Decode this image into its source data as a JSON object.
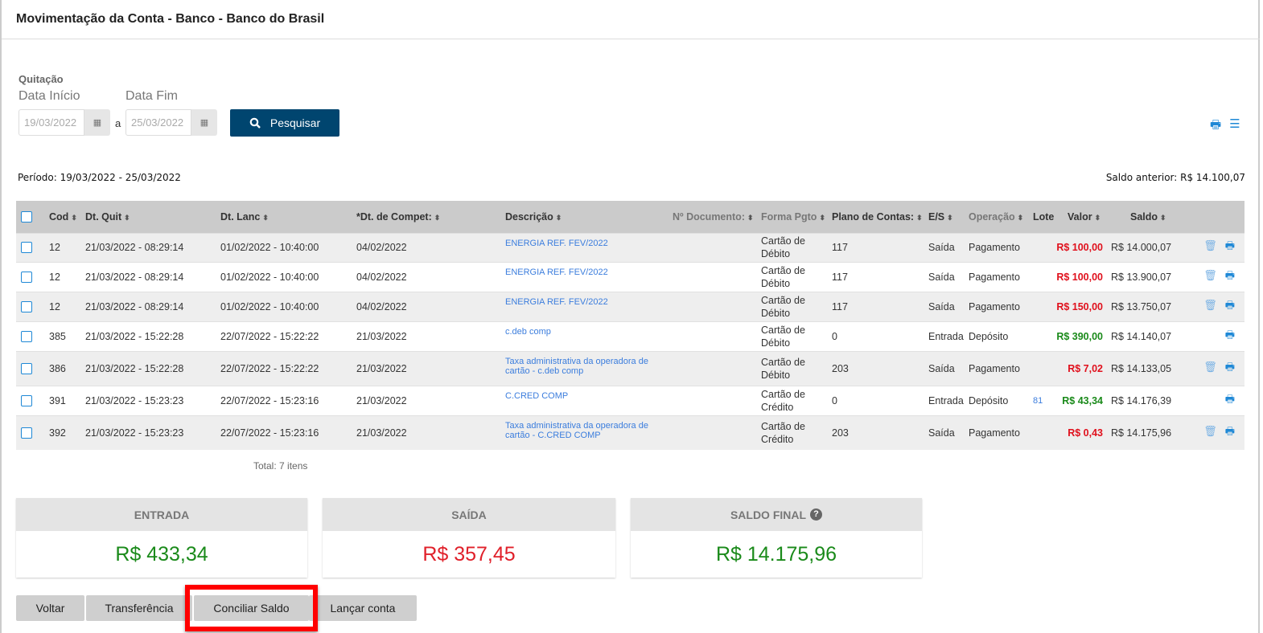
{
  "title": "Movimentação da Conta - Banco - Banco do Brasil",
  "filter": {
    "group_label": "Quitação",
    "start_label": "Data Início",
    "end_label": "Data Fim",
    "start_value": "19/03/2022",
    "end_value": "25/03/2022",
    "separator": "a",
    "search_label": "Pesquisar"
  },
  "periodo": "Período: 19/03/2022 - 25/03/2022",
  "saldo_anterior": "Saldo anterior: R$ 14.100,07",
  "columns": [
    "Cod",
    "Dt. Quit",
    "Dt. Lanc",
    "*Dt. de Compet:",
    "Descrição",
    "Nº Documento:",
    "Forma Pgto",
    "Plano de Contas:",
    "E/S",
    "Operação",
    "Lote",
    "Valor",
    "Saldo"
  ],
  "rows": [
    {
      "cod": "12",
      "quit": "21/03/2022 - 08:29:14",
      "lanc": "01/02/2022 - 10:40:00",
      "compet": "04/02/2022",
      "desc": "ENERGIA REF. FEV/2022",
      "forma": "Cartão de Débito",
      "plano": "117",
      "es": "Saída",
      "oper": "Pagamento",
      "lote": "",
      "valor": "R$ 100,00",
      "saldo": "R$ 14.000,07"
    },
    {
      "cod": "12",
      "quit": "21/03/2022 - 08:29:14",
      "lanc": "01/02/2022 - 10:40:00",
      "compet": "04/02/2022",
      "desc": "ENERGIA REF. FEV/2022",
      "forma": "Cartão de Débito",
      "plano": "117",
      "es": "Saída",
      "oper": "Pagamento",
      "lote": "",
      "valor": "R$ 100,00",
      "saldo": "R$ 13.900,07"
    },
    {
      "cod": "12",
      "quit": "21/03/2022 - 08:29:14",
      "lanc": "01/02/2022 - 10:40:00",
      "compet": "04/02/2022",
      "desc": "ENERGIA REF. FEV/2022",
      "forma": "Cartão de Débito",
      "plano": "117",
      "es": "Saída",
      "oper": "Pagamento",
      "lote": "",
      "valor": "R$ 150,00",
      "saldo": "R$ 13.750,07"
    },
    {
      "cod": "385",
      "quit": "21/03/2022 - 15:22:28",
      "lanc": "22/07/2022 - 15:22:22",
      "compet": "21/03/2022",
      "desc": "c.deb comp",
      "forma": "Cartão de Débito",
      "plano": "0",
      "es": "Entrada",
      "oper": "Depósito",
      "lote": "",
      "valor": "R$ 390,00",
      "saldo": "R$ 14.140,07"
    },
    {
      "cod": "386",
      "quit": "21/03/2022 - 15:22:28",
      "lanc": "22/07/2022 - 15:22:22",
      "compet": "21/03/2022",
      "desc": "Taxa administrativa da operadora de cartão - c.deb comp",
      "forma": "Cartão de Débito",
      "plano": "203",
      "es": "Saída",
      "oper": "Pagamento",
      "lote": "",
      "valor": "R$ 7,02",
      "saldo": "R$ 14.133,05"
    },
    {
      "cod": "391",
      "quit": "21/03/2022 - 15:23:23",
      "lanc": "22/07/2022 - 15:23:16",
      "compet": "21/03/2022",
      "desc": "C.CRED COMP",
      "forma": "Cartão de Crédito",
      "plano": "0",
      "es": "Entrada",
      "oper": "Depósito",
      "lote": "81",
      "valor": "R$ 43,34",
      "saldo": "R$ 14.176,39"
    },
    {
      "cod": "392",
      "quit": "21/03/2022 - 15:23:23",
      "lanc": "22/07/2022 - 15:23:16",
      "compet": "21/03/2022",
      "desc": "Taxa administrativa da operadora de cartão - C.CRED COMP",
      "forma": "Cartão de Crédito",
      "plano": "203",
      "es": "Saída",
      "oper": "Pagamento",
      "lote": "",
      "valor": "R$ 0,43",
      "saldo": "R$ 14.175,96"
    }
  ],
  "total": "Total: 7 itens",
  "summary": {
    "entrada_label": "ENTRADA",
    "entrada": "R$ 433,34",
    "saida_label": "SAÍDA",
    "saida": "R$ 357,45",
    "final_label": "SALDO FINAL",
    "final": "R$ 14.175,96"
  },
  "buttons": {
    "voltar": "Voltar",
    "transferencia": "Transferência",
    "conciliar": "Conciliar Saldo",
    "lancar": "Lançar conta"
  },
  "colors": {
    "primary": "#00456f",
    "negative": "#e0101c",
    "positive": "#1a8a1a",
    "link": "#3b7ddd",
    "highlight": "#ff0000"
  }
}
